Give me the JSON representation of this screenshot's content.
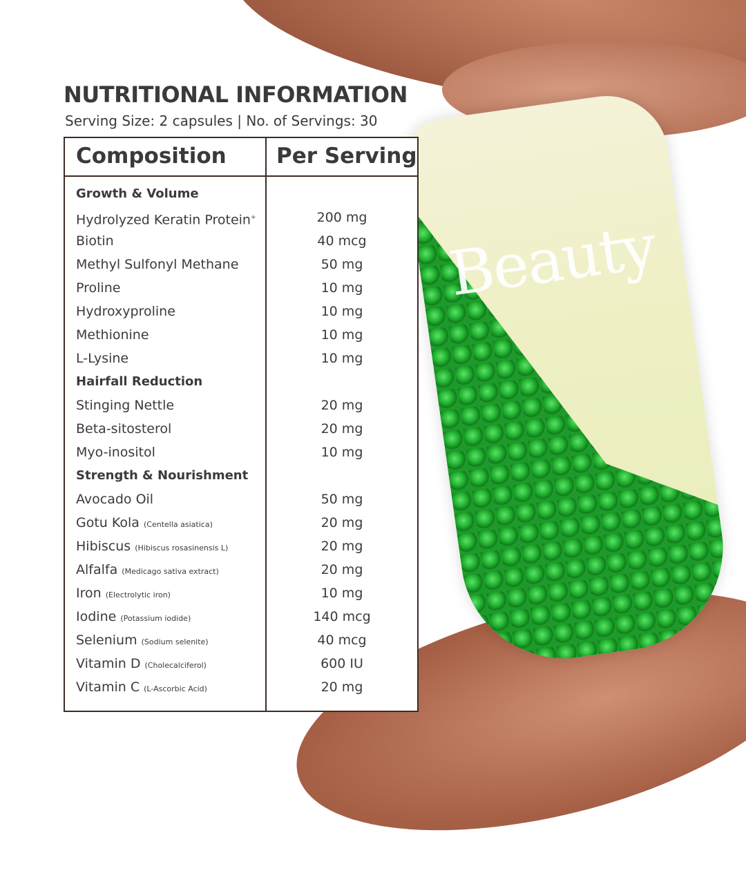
{
  "title": "NUTRITIONAL INFORMATION",
  "subtitle": "Serving Size: 2 capsules | No. of Servings: 30",
  "brand_text": "Beauty",
  "headers": {
    "composition": "Composition",
    "per_serving": "Per Serving"
  },
  "rows": [
    {
      "section": "Growth & Volume"
    },
    {
      "name": "Hydrolyzed Keratin Protein",
      "sup": "+",
      "value": "200 mg"
    },
    {
      "name": "Biotin",
      "value": "40 mcg"
    },
    {
      "name": "Methyl Sulfonyl Methane",
      "value": "50 mg"
    },
    {
      "name": "Proline",
      "value": "10 mg"
    },
    {
      "name": "Hydroxyproline",
      "value": "10 mg"
    },
    {
      "name": "Methionine",
      "value": "10 mg"
    },
    {
      "name": "L-Lysine",
      "value": "10 mg"
    },
    {
      "section": "Hairfall Reduction"
    },
    {
      "name": "Stinging Nettle",
      "value": "20 mg"
    },
    {
      "name": "Beta-sitosterol",
      "value": "20 mg"
    },
    {
      "name": "Myo-inositol",
      "value": "10 mg"
    },
    {
      "section": "Strength & Nourishment"
    },
    {
      "name": "Avocado Oil",
      "value": "50 mg"
    },
    {
      "name": "Gotu Kola",
      "note": "(Centella asiatica)",
      "value": "20 mg"
    },
    {
      "name": "Hibiscus",
      "note": "(Hibiscus rosasinensis L)",
      "value": "20 mg"
    },
    {
      "name": "Alfalfa",
      "note": "(Medicago sativa extract)",
      "value": "20 mg"
    },
    {
      "name": "Iron",
      "note": "(Electrolytic iron)",
      "value": "10 mg"
    },
    {
      "name": "Iodine",
      "note": "(Potassium iodide)",
      "value": "140 mcg"
    },
    {
      "name": "Selenium",
      "note": "(Sodium selenite)",
      "value": "40 mcg"
    },
    {
      "name": "Vitamin D",
      "note": "(Cholecalciferol)",
      "value": "600 IU"
    },
    {
      "name": "Vitamin C",
      "note": "(L-Ascorbic Acid)",
      "value": "20 mg"
    }
  ]
}
